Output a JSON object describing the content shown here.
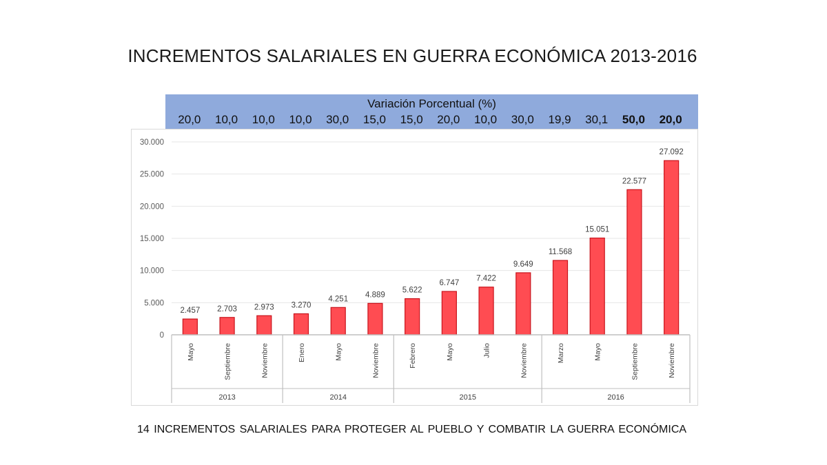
{
  "title": "INCREMENTOS SALARIALES EN GUERRA ECONÓMICA 2013-2016",
  "percent_header": {
    "title": "Variación Porcentual (%)",
    "values": [
      {
        "text": "20,0",
        "bold": false
      },
      {
        "text": "10,0",
        "bold": false
      },
      {
        "text": "10,0",
        "bold": false
      },
      {
        "text": "10,0",
        "bold": false
      },
      {
        "text": "30,0",
        "bold": false
      },
      {
        "text": "15,0",
        "bold": false
      },
      {
        "text": "15,0",
        "bold": false
      },
      {
        "text": "20,0",
        "bold": false
      },
      {
        "text": "10,0",
        "bold": false
      },
      {
        "text": "30,0",
        "bold": false
      },
      {
        "text": "19,9",
        "bold": false
      },
      {
        "text": "30,1",
        "bold": false
      },
      {
        "text": "50,0",
        "bold": true
      },
      {
        "text": "20,0",
        "bold": true
      }
    ]
  },
  "chart_data": {
    "type": "bar",
    "title": "",
    "xlabel": "",
    "ylabel": "",
    "ylim": [
      0,
      30000
    ],
    "yticks": [
      0,
      5000,
      10000,
      15000,
      20000,
      25000,
      30000
    ],
    "ytick_labels": [
      "0",
      "5.000",
      "10.000",
      "15.000",
      "20.000",
      "25.000",
      "30.000"
    ],
    "grid": true,
    "bar_color": "#ff4c52",
    "bar_edge_color": "#c8141c",
    "categories": [
      "Mayo",
      "Septiembre",
      "Noviembre",
      "Enero",
      "Mayo",
      "Noviembre",
      "Febrero",
      "Mayo",
      "Julio",
      "Noviembre",
      "Marzo",
      "Mayo",
      "Septiembre",
      "Noviembre"
    ],
    "values": [
      2457,
      2703,
      2973,
      3270,
      4251,
      4889,
      5622,
      6747,
      7422,
      9649,
      11568,
      15051,
      22577,
      27092
    ],
    "value_labels": [
      "2.457",
      "2.703",
      "2.973",
      "3.270",
      "4.251",
      "4.889",
      "5.622",
      "6.747",
      "7.422",
      "9.649",
      "11.568",
      "15.051",
      "22.577",
      "27.092"
    ],
    "groups": [
      {
        "label": "2013",
        "count": 3
      },
      {
        "label": "2014",
        "count": 3
      },
      {
        "label": "2015",
        "count": 4
      },
      {
        "label": "2016",
        "count": 4
      }
    ]
  },
  "footer": "14 INCREMENTOS  SALARIALES  PARA  PROTEGER  AL PUEBLO  Y COMBATIR  LA GUERRA  ECONÓMICA"
}
